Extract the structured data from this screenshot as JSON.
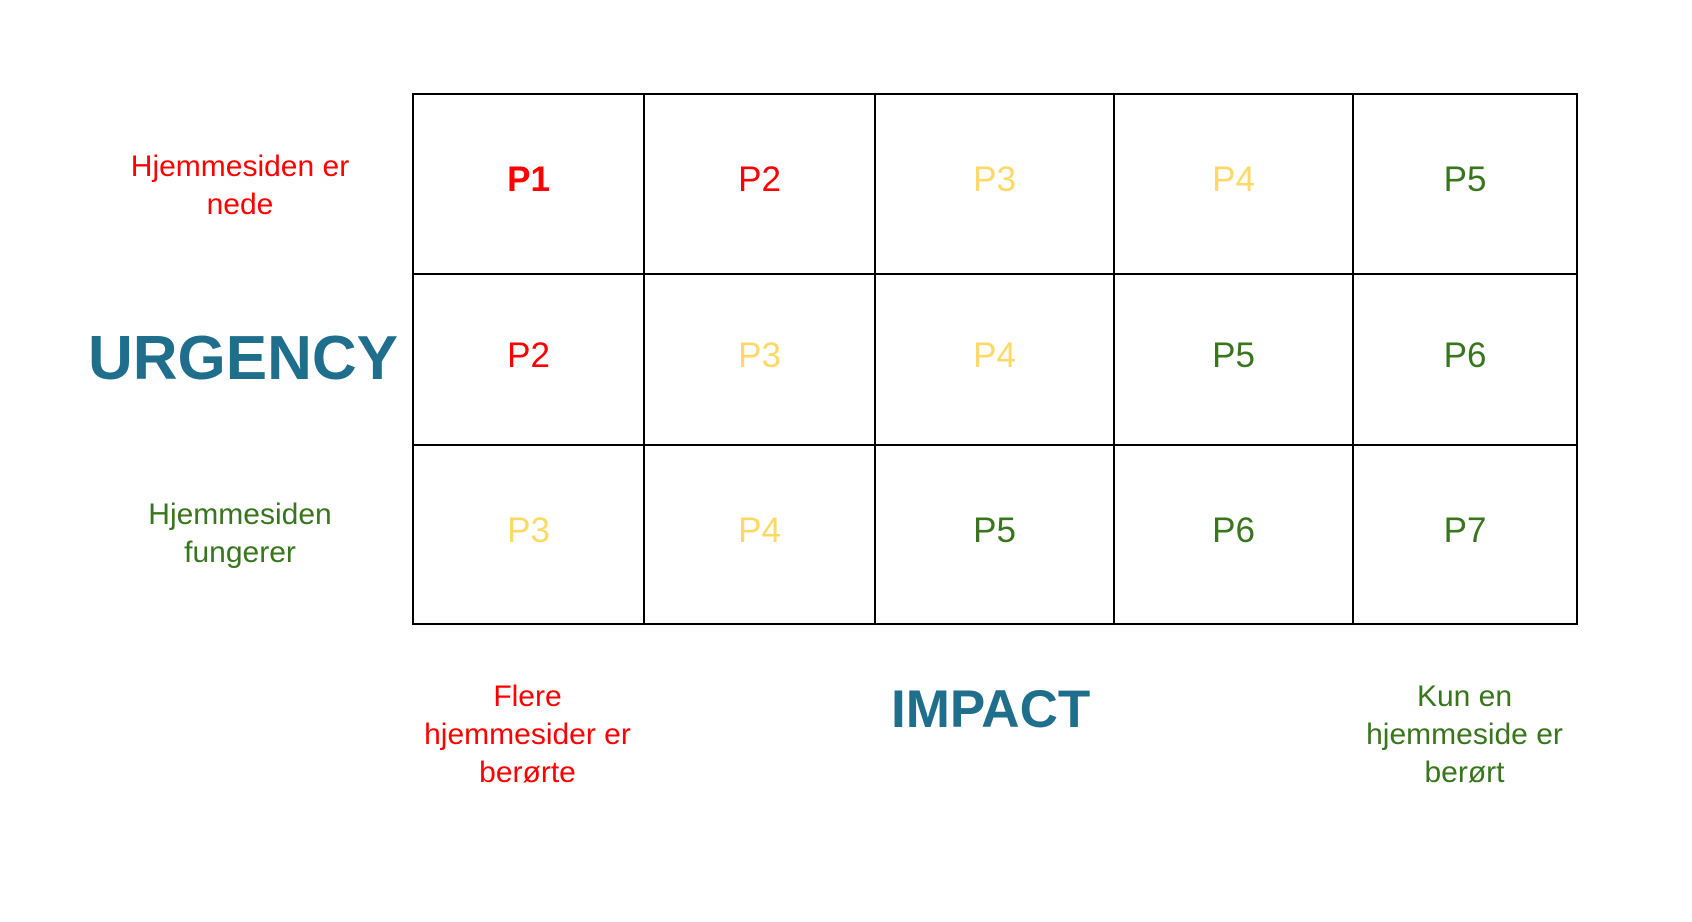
{
  "colors": {
    "red": "#ff0000",
    "yellow": "#ffd966",
    "green": "#38761d",
    "axis_title": "#1f6e8c",
    "grid_line": "#000000"
  },
  "urgency": {
    "title": "URGENCY",
    "high_label": "Hjemmesiden er nede",
    "low_label": "Hjemmesiden fungerer"
  },
  "impact": {
    "title": "IMPACT",
    "high_label": "Flere hjemmesider er berørte",
    "low_label": "Kun en hjemmeside er berørt"
  },
  "matrix": {
    "rows": [
      [
        {
          "label": "P1",
          "color": "red",
          "bold": true
        },
        {
          "label": "P2",
          "color": "red",
          "bold": false
        },
        {
          "label": "P3",
          "color": "yellow",
          "bold": false
        },
        {
          "label": "P4",
          "color": "yellow",
          "bold": false
        },
        {
          "label": "P5",
          "color": "green",
          "bold": false
        }
      ],
      [
        {
          "label": "P2",
          "color": "red",
          "bold": false
        },
        {
          "label": "P3",
          "color": "yellow",
          "bold": false
        },
        {
          "label": "P4",
          "color": "yellow",
          "bold": false
        },
        {
          "label": "P5",
          "color": "green",
          "bold": false
        },
        {
          "label": "P6",
          "color": "green",
          "bold": false
        }
      ],
      [
        {
          "label": "P3",
          "color": "yellow",
          "bold": false
        },
        {
          "label": "P4",
          "color": "yellow",
          "bold": false
        },
        {
          "label": "P5",
          "color": "green",
          "bold": false
        },
        {
          "label": "P6",
          "color": "green",
          "bold": false
        },
        {
          "label": "P7",
          "color": "green",
          "bold": false
        }
      ]
    ]
  }
}
